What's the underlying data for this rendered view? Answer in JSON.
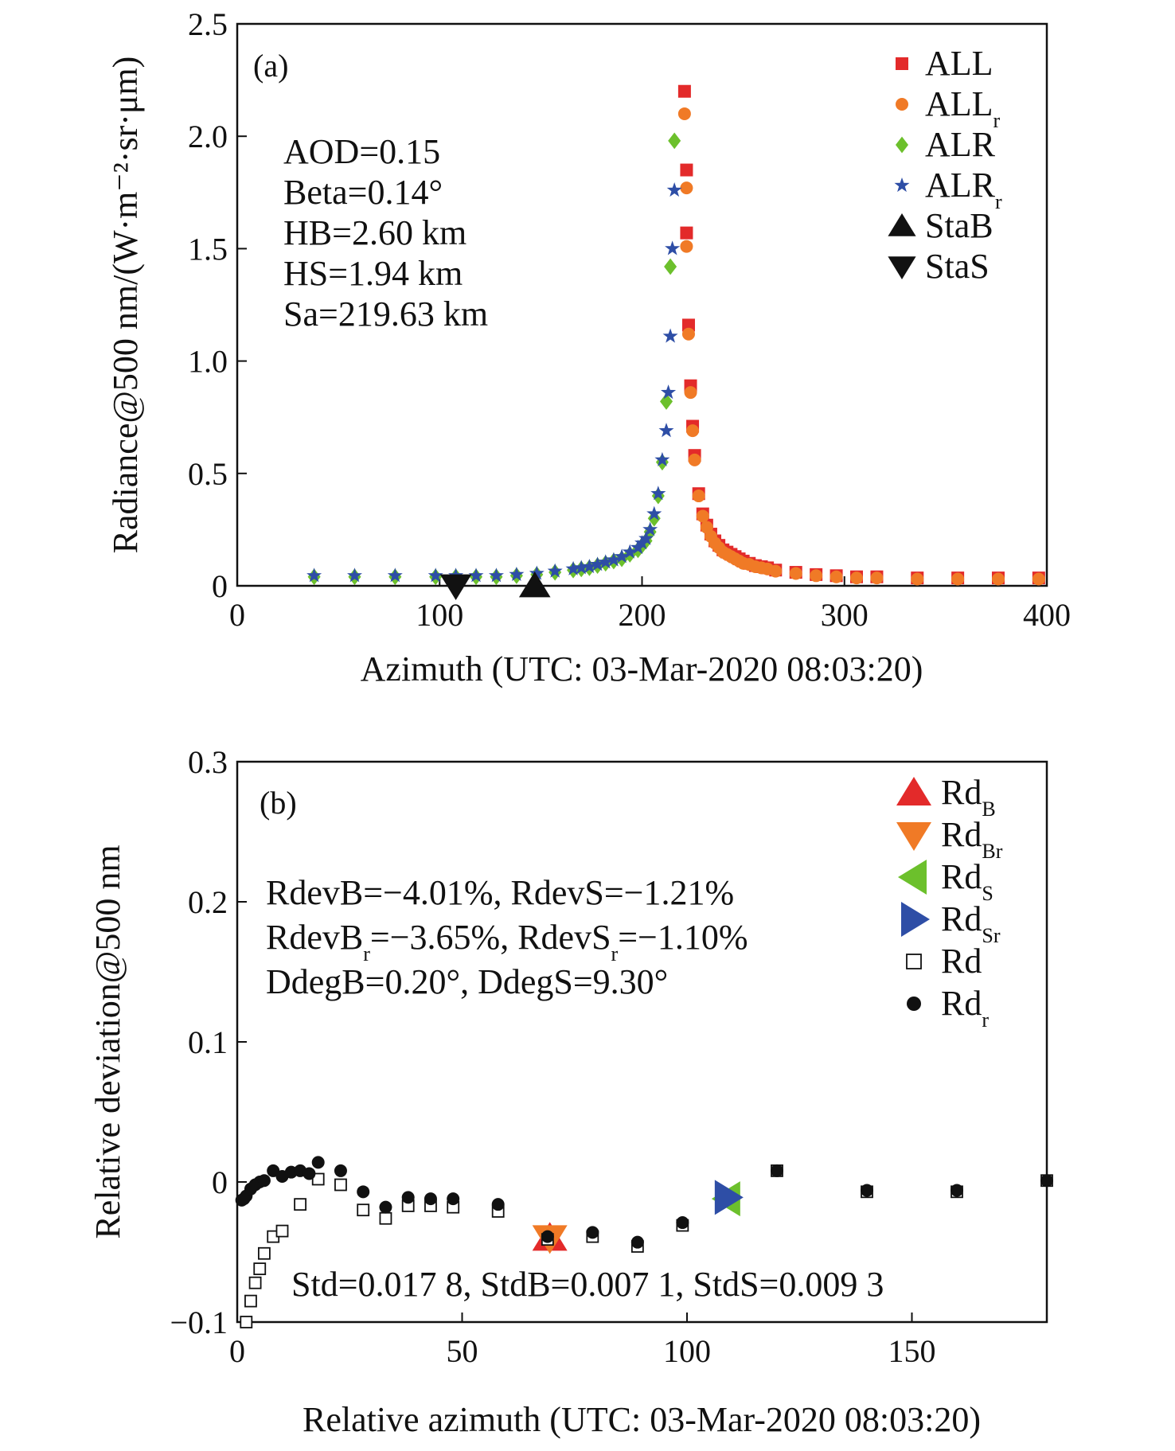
{
  "colors": {
    "red": "#e32a2a",
    "orange": "#f07a26",
    "green": "#6cc02c",
    "blue": "#2e4ea6",
    "black": "#111111"
  },
  "chart_data": [
    {
      "type": "scatter",
      "panel_label": "(a)",
      "xlabel": "Azimuth (UTC: 03-Mar-2020 08:03:20)",
      "ylabel": "Radiance@500 nm/(W·m⁻²·sr·μm)",
      "xlim": [
        0,
        400
      ],
      "ylim": [
        0,
        2.5
      ],
      "xticks": [
        0,
        100,
        200,
        300,
        400
      ],
      "xtick_labels": [
        "0",
        "100",
        "200",
        "300",
        "400"
      ],
      "yticks": [
        0,
        0.5,
        1.0,
        1.5,
        2.0,
        2.5
      ],
      "ytick_labels": [
        "0",
        "0.5",
        "1.0",
        "1.5",
        "2.0",
        "2.5"
      ],
      "annotations": [
        "AOD=0.15",
        "Beta=0.14°",
        "HB=2.60 km",
        "HS=1.94 km",
        "Sa=219.63 km"
      ],
      "legend_placement": "top-right",
      "grid": false,
      "series": [
        {
          "name": "ALL",
          "sub": "",
          "marker": "square",
          "color": "#e32a2a",
          "x": [
            221,
            222,
            222,
            223,
            224,
            225,
            226,
            228,
            230,
            232,
            234,
            236,
            238,
            240,
            242,
            244,
            246,
            248,
            250,
            253,
            256,
            259,
            262,
            266,
            276,
            286,
            296,
            306,
            316,
            336,
            356,
            376,
            396
          ],
          "y": [
            2.2,
            1.85,
            1.57,
            1.16,
            0.89,
            0.71,
            0.58,
            0.41,
            0.32,
            0.27,
            0.23,
            0.2,
            0.18,
            0.16,
            0.15,
            0.14,
            0.13,
            0.12,
            0.11,
            0.1,
            0.09,
            0.085,
            0.08,
            0.07,
            0.06,
            0.05,
            0.045,
            0.04,
            0.04,
            0.035,
            0.035,
            0.035,
            0.035
          ]
        },
        {
          "name": "ALL",
          "sub": "r",
          "marker": "circle",
          "color": "#f07a26",
          "x": [
            221,
            222,
            222,
            223,
            224,
            225,
            226,
            228,
            230,
            232,
            234,
            236,
            238,
            240,
            242,
            244,
            246,
            248,
            250,
            253,
            256,
            259,
            262,
            266,
            276,
            286,
            296,
            306,
            316,
            336,
            356,
            376,
            396
          ],
          "y": [
            2.1,
            1.77,
            1.51,
            1.12,
            0.86,
            0.69,
            0.56,
            0.4,
            0.31,
            0.26,
            0.22,
            0.19,
            0.17,
            0.15,
            0.14,
            0.13,
            0.12,
            0.11,
            0.1,
            0.095,
            0.085,
            0.08,
            0.075,
            0.065,
            0.055,
            0.045,
            0.04,
            0.035,
            0.035,
            0.03,
            0.03,
            0.03,
            0.03
          ]
        },
        {
          "name": "ALR",
          "sub": "",
          "marker": "diamond",
          "color": "#6cc02c",
          "x": [
            38,
            58,
            78,
            98,
            108,
            118,
            128,
            138,
            148,
            157,
            166,
            170,
            174,
            178,
            182,
            186,
            190,
            194,
            198,
            200,
            202,
            204,
            206,
            208,
            210,
            212,
            214,
            216
          ],
          "y": [
            0.04,
            0.04,
            0.04,
            0.04,
            0.04,
            0.04,
            0.04,
            0.045,
            0.05,
            0.06,
            0.07,
            0.075,
            0.08,
            0.09,
            0.1,
            0.11,
            0.12,
            0.14,
            0.16,
            0.18,
            0.2,
            0.24,
            0.3,
            0.4,
            0.55,
            0.82,
            1.42,
            1.98
          ]
        },
        {
          "name": "ALR",
          "sub": "r",
          "marker": "star",
          "color": "#2e4ea6",
          "x": [
            38,
            58,
            78,
            98,
            108,
            118,
            128,
            138,
            148,
            157,
            166,
            170,
            174,
            178,
            182,
            186,
            190,
            194,
            198,
            200,
            202,
            204,
            206,
            208,
            210,
            212,
            213,
            214,
            215,
            216
          ],
          "y": [
            0.045,
            0.045,
            0.045,
            0.045,
            0.045,
            0.045,
            0.045,
            0.05,
            0.055,
            0.065,
            0.075,
            0.08,
            0.085,
            0.095,
            0.105,
            0.115,
            0.13,
            0.15,
            0.17,
            0.19,
            0.21,
            0.25,
            0.32,
            0.41,
            0.56,
            0.69,
            0.86,
            1.11,
            1.5,
            1.76
          ]
        },
        {
          "name": "StaB",
          "sub": "",
          "marker": "triangle-up",
          "color": "#111111",
          "x": [
            147
          ],
          "y": [
            0.0
          ]
        },
        {
          "name": "StaS",
          "sub": "",
          "marker": "triangle-down",
          "color": "#111111",
          "x": [
            108
          ],
          "y": [
            0.0
          ]
        }
      ]
    },
    {
      "type": "scatter",
      "panel_label": "(b)",
      "xlabel": "Relative azimuth (UTC: 03-Mar-2020 08:03:20)",
      "ylabel": "Relative deviation@500 nm",
      "xlim": [
        0,
        180
      ],
      "ylim": [
        -0.1,
        0.3
      ],
      "xticks": [
        0,
        50,
        100,
        150
      ],
      "xtick_labels": [
        "0",
        "50",
        "100",
        "150"
      ],
      "yticks": [
        -0.1,
        0,
        0.1,
        0.2,
        0.3
      ],
      "ytick_labels": [
        "−0.1",
        "0",
        "0.1",
        "0.2",
        "0.3"
      ],
      "annotations": [
        "Std=0.017 8, StdB=0.007 1, StdS=0.009 3"
      ],
      "stats_lines": [
        [
          [
            "RdevB=−4.01%, RdevS=−1.21%",
            ""
          ]
        ],
        [
          [
            "RdevB",
            "r"
          ],
          [
            "=−3.65%, RdevS",
            "r"
          ],
          [
            "=−1.10%",
            ""
          ]
        ],
        [
          [
            "DdegB=0.20°, DdegS=9.30°",
            ""
          ]
        ]
      ],
      "legend_placement": "top-right",
      "grid": false,
      "series": [
        {
          "name": "Rd",
          "sub": "B",
          "marker": "triangle-up",
          "color": "#e32a2a",
          "x": [
            69.5
          ],
          "y": [
            -0.04
          ]
        },
        {
          "name": "Rd",
          "sub": "Br",
          "marker": "triangle-down",
          "color": "#f07a26",
          "x": [
            69.5
          ],
          "y": [
            -0.04
          ]
        },
        {
          "name": "Rd",
          "sub": "S",
          "marker": "triangle-left",
          "color": "#6cc02c",
          "x": [
            109
          ],
          "y": [
            -0.012
          ]
        },
        {
          "name": "Rd",
          "sub": "Sr",
          "marker": "triangle-right",
          "color": "#2e4ea6",
          "x": [
            109
          ],
          "y": [
            -0.011
          ]
        },
        {
          "name": "Rd",
          "sub": "",
          "marker": "open-square",
          "color": "#111111",
          "x": [
            2,
            3,
            4,
            5,
            6,
            8,
            10,
            14,
            18,
            23,
            28,
            33,
            38,
            43,
            48,
            58,
            69,
            79,
            89,
            99,
            120,
            140,
            160,
            180
          ],
          "y": [
            -0.1,
            -0.085,
            -0.072,
            -0.062,
            -0.051,
            -0.039,
            -0.035,
            -0.016,
            0.002,
            -0.002,
            -0.02,
            -0.026,
            -0.017,
            -0.017,
            -0.018,
            -0.021,
            -0.041,
            -0.039,
            -0.046,
            -0.031,
            0.008,
            -0.007,
            -0.007,
            0.001
          ]
        },
        {
          "name": "Rd",
          "sub": "r",
          "marker": "filled-circle",
          "color": "#111111",
          "x": [
            1,
            1.5,
            2,
            3,
            4,
            5,
            6,
            8,
            10,
            12,
            14,
            16,
            18,
            23,
            28,
            33,
            38,
            43,
            48,
            58,
            69,
            79,
            89,
            99,
            120,
            140,
            160,
            180
          ],
          "y": [
            -0.013,
            -0.012,
            -0.01,
            -0.005,
            -0.002,
            0,
            0.001,
            0.008,
            0.004,
            0.007,
            0.008,
            0.006,
            0.014,
            0.008,
            -0.007,
            -0.018,
            -0.011,
            -0.012,
            -0.012,
            -0.016,
            -0.039,
            -0.036,
            -0.043,
            -0.029,
            0.008,
            -0.006,
            -0.006,
            0.001
          ]
        }
      ]
    }
  ]
}
